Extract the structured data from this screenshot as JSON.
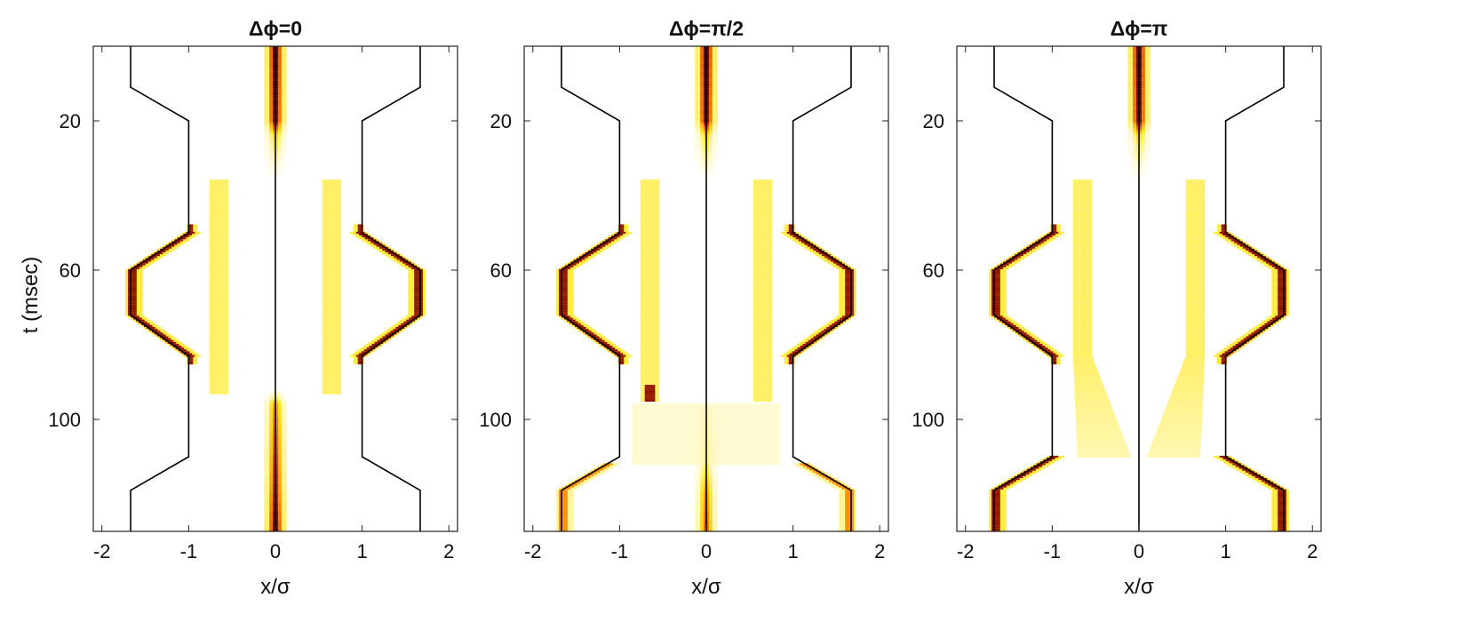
{
  "figure": {
    "ylabel": "t (msec)",
    "xlabel": "x/σ"
  },
  "colors": {
    "trap": "#000000",
    "colormap": [
      "#ffffff",
      "#fff5a0",
      "#ffe600",
      "#ffa000",
      "#d22800",
      "#500000"
    ]
  },
  "chart_data": [
    {
      "type": "heatmap",
      "title": "Δϕ=0",
      "xlabel": "x/σ",
      "ylabel": "t (msec)",
      "xlim": [
        -2.1,
        2.1
      ],
      "ylim": [
        0,
        130
      ],
      "y_inverted": true,
      "xticks": [
        -2,
        -1,
        0,
        1,
        2
      ],
      "yticks": [
        20,
        60,
        100
      ],
      "trap_wells_x": {
        "t": [
          0,
          11,
          20,
          50,
          60,
          72,
          83,
          110,
          119,
          130
        ],
        "outer_right": [
          1.67,
          1.67,
          1.0,
          1.0,
          1.67,
          1.67,
          1.0,
          1.0,
          1.67,
          1.67
        ],
        "center": 0
      },
      "density_features": {
        "center_intensity": [
          [
            0,
            1.0
          ],
          [
            20,
            0.95
          ],
          [
            24,
            0.45
          ],
          [
            36,
            0.0
          ],
          [
            92,
            0.0
          ],
          [
            96,
            0.6
          ],
          [
            130,
            1.0
          ]
        ],
        "inner_lobes": {
          "x": 0.65,
          "t_range": [
            36,
            93
          ],
          "intensity": 0.35
        },
        "outer_edge_peak": {
          "x": 1.67,
          "t_range": [
            50,
            83
          ],
          "intensity": 1.0
        }
      }
    },
    {
      "type": "heatmap",
      "title": "Δϕ=π/2",
      "xlabel": "x/σ",
      "ylabel": "",
      "xlim": [
        -2.1,
        2.1
      ],
      "ylim": [
        0,
        130
      ],
      "y_inverted": true,
      "xticks": [
        -2,
        -1,
        0,
        1,
        2
      ],
      "yticks": [
        20,
        60,
        100
      ],
      "trap_wells_x": {
        "t": [
          0,
          11,
          20,
          50,
          60,
          72,
          83,
          110,
          119,
          130
        ],
        "outer_right": [
          1.67,
          1.67,
          1.0,
          1.0,
          1.67,
          1.67,
          1.0,
          1.0,
          1.67,
          1.67
        ],
        "center": 0
      },
      "density_features": {
        "center_intensity": [
          [
            0,
            1.0
          ],
          [
            20,
            0.95
          ],
          [
            24,
            0.45
          ],
          [
            36,
            0.0
          ],
          [
            95,
            0.0
          ],
          [
            97,
            0.15
          ],
          [
            112,
            0.3
          ],
          [
            120,
            0.6
          ],
          [
            130,
            0.7
          ]
        ],
        "inner_lobes": {
          "x": 0.65,
          "t_range": [
            36,
            95
          ],
          "intensity": 0.35,
          "left_hot_spot_t": 93
        },
        "spread_region": {
          "t_range": [
            96,
            112
          ],
          "intensity": 0.18
        },
        "outer_edge_peak": {
          "x": 1.67,
          "t_range": [
            50,
            83
          ],
          "intensity": 1.0
        },
        "outer_edge_late": {
          "t_range": [
            112,
            130
          ],
          "intensity": 0.7
        }
      }
    },
    {
      "type": "heatmap",
      "title": "Δϕ=π",
      "xlabel": "x/σ",
      "ylabel": "",
      "xlim": [
        -2.1,
        2.1
      ],
      "ylim": [
        0,
        130
      ],
      "y_inverted": true,
      "xticks": [
        -2,
        -1,
        0,
        1,
        2
      ],
      "yticks": [
        20,
        60,
        100
      ],
      "trap_wells_x": {
        "t": [
          0,
          11,
          20,
          50,
          60,
          72,
          83,
          110,
          119,
          130
        ],
        "outer_right": [
          1.67,
          1.67,
          1.0,
          1.0,
          1.67,
          1.67,
          1.0,
          1.0,
          1.67,
          1.67
        ],
        "center": 0
      },
      "density_features": {
        "center_intensity": [
          [
            0,
            1.0
          ],
          [
            20,
            0.95
          ],
          [
            24,
            0.45
          ],
          [
            36,
            0.0
          ],
          [
            130,
            0.0
          ]
        ],
        "inner_lobes": {
          "x": 0.65,
          "t_range": [
            36,
            110
          ],
          "intensity": 0.35,
          "spread_toward_center_after": 83
        },
        "outer_edge_peak": {
          "x": 1.67,
          "t_range": [
            50,
            83
          ],
          "intensity": 1.0
        },
        "outer_edge_late": {
          "t_range": [
            110,
            130
          ],
          "intensity": 1.0
        }
      }
    }
  ]
}
